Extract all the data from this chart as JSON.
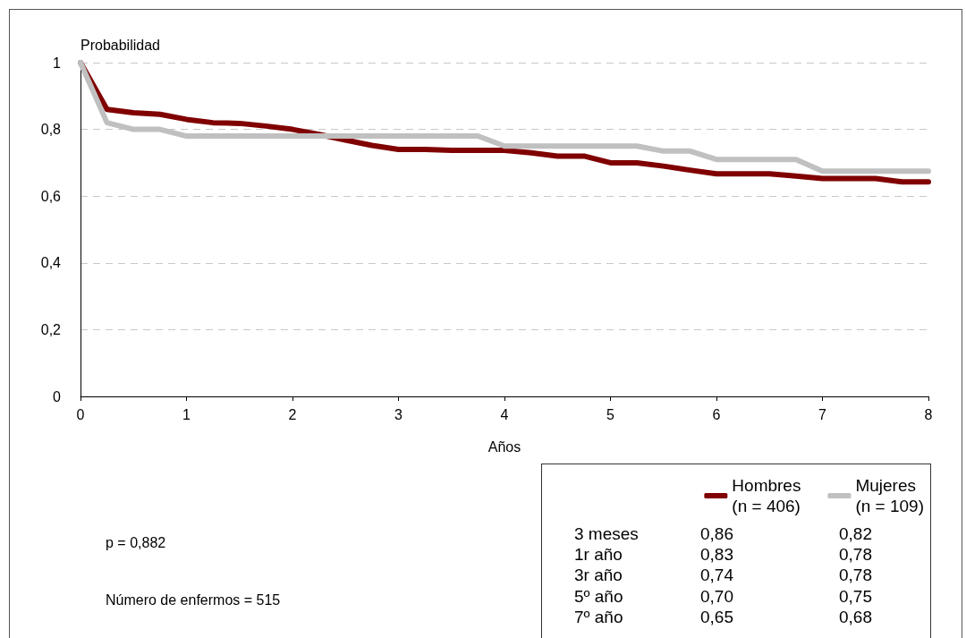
{
  "chart_data": {
    "type": "line",
    "xlabel": "Años",
    "ylabel": "Probabilidad",
    "x": [
      0,
      0.25,
      0.5,
      0.75,
      1,
      1.25,
      1.5,
      1.75,
      2,
      2.25,
      2.5,
      2.75,
      3,
      3.25,
      3.5,
      3.75,
      4,
      4.25,
      4.5,
      4.75,
      5,
      5.25,
      5.5,
      5.75,
      6,
      6.25,
      6.5,
      6.75,
      7,
      7.25,
      7.5,
      7.75,
      8
    ],
    "series": [
      {
        "name": "Hombres\n(n = 406)",
        "color": "#800000",
        "values": [
          1,
          0.86,
          0.85,
          0.845,
          0.83,
          0.82,
          0.818,
          0.81,
          0.8,
          0.785,
          0.768,
          0.752,
          0.74,
          0.74,
          0.737,
          0.737,
          0.737,
          0.73,
          0.72,
          0.72,
          0.7,
          0.7,
          0.69,
          0.678,
          0.667,
          0.667,
          0.667,
          0.66,
          0.653,
          0.653,
          0.653,
          0.643,
          0.643
        ]
      },
      {
        "name": "Mujeres\n(n = 109)",
        "color": "#c0c0c0",
        "values": [
          1,
          0.82,
          0.8,
          0.8,
          0.78,
          0.78,
          0.78,
          0.78,
          0.78,
          0.78,
          0.78,
          0.78,
          0.78,
          0.78,
          0.78,
          0.78,
          0.75,
          0.75,
          0.75,
          0.75,
          0.75,
          0.75,
          0.735,
          0.735,
          0.71,
          0.71,
          0.71,
          0.71,
          0.675,
          0.675,
          0.675,
          0.675,
          0.675
        ]
      }
    ],
    "xlim": [
      0,
      8
    ],
    "xticks": [
      0,
      1,
      2,
      3,
      4,
      5,
      6,
      7,
      8
    ],
    "ylim": [
      0,
      1
    ],
    "yticks": [
      0,
      {
        "value": 0.2,
        "label": "0,2"
      },
      {
        "value": 0.4,
        "label": "0,4"
      },
      {
        "value": 0.6,
        "label": "0,6"
      },
      {
        "value": 0.8,
        "label": "0,8"
      },
      1
    ],
    "grid": "y",
    "legend": "bottom right",
    "marker": "none",
    "line_style": "solid",
    "annotations": [
      "p = 0,882",
      "Número de enfermos = 515",
      "3 meses",
      "0,86",
      "0,82",
      "1r año",
      "0,83",
      "0,78",
      "3r año",
      "0,74",
      "0,78",
      "5º año",
      "0,70",
      "0,75",
      "7º año",
      "0,65",
      "0,68"
    ]
  }
}
